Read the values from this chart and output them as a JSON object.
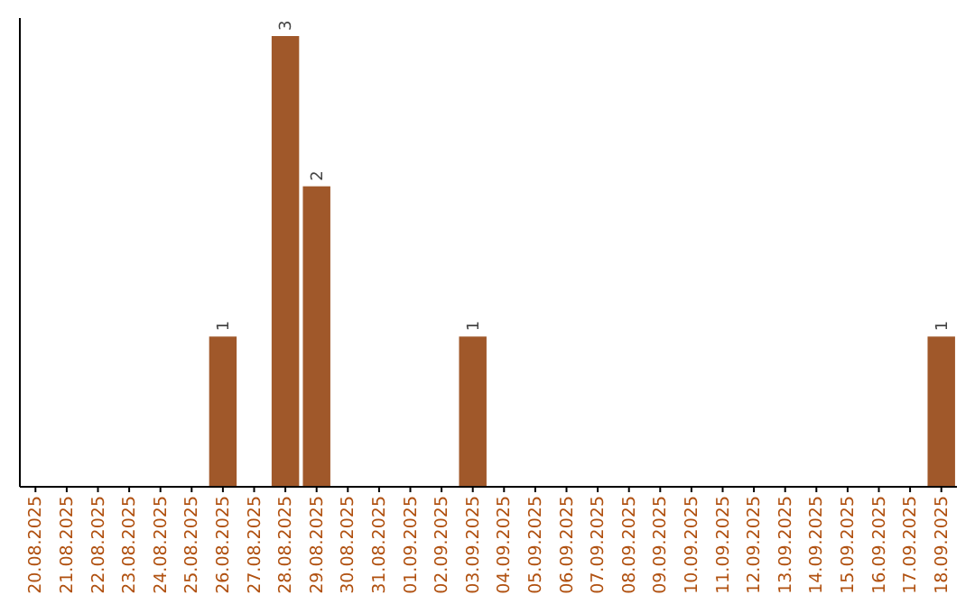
{
  "chart_data": {
    "type": "bar",
    "categories": [
      "20.08.2025",
      "21.08.2025",
      "22.08.2025",
      "23.08.2025",
      "24.08.2025",
      "25.08.2025",
      "26.08.2025",
      "27.08.2025",
      "28.08.2025",
      "29.08.2025",
      "30.08.2025",
      "31.08.2025",
      "01.09.2025",
      "02.09.2025",
      "03.09.2025",
      "04.09.2025",
      "05.09.2025",
      "06.09.2025",
      "07.09.2025",
      "08.09.2025",
      "09.09.2025",
      "10.09.2025",
      "11.09.2025",
      "12.09.2025",
      "13.09.2025",
      "14.09.2025",
      "15.09.2025",
      "16.09.2025",
      "17.09.2025",
      "18.09.2025"
    ],
    "values": [
      0,
      0,
      0,
      0,
      0,
      0,
      1,
      0,
      3,
      2,
      0,
      0,
      0,
      0,
      1,
      0,
      0,
      0,
      0,
      0,
      0,
      0,
      0,
      0,
      0,
      0,
      0,
      0,
      0,
      1
    ],
    "value_labels": [
      null,
      null,
      null,
      null,
      null,
      null,
      "1",
      null,
      "3",
      "2",
      null,
      null,
      null,
      null,
      "1",
      null,
      null,
      null,
      null,
      null,
      null,
      null,
      null,
      null,
      null,
      null,
      null,
      null,
      null,
      "1"
    ],
    "color": "#a0582a",
    "ylim": [
      0,
      3
    ],
    "tick_labels": "x"
  }
}
